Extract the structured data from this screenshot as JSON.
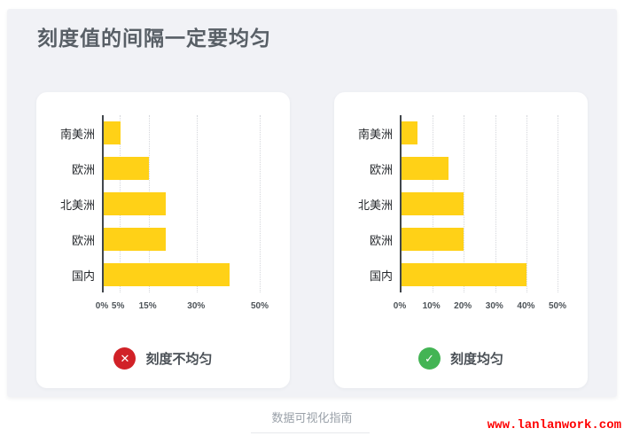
{
  "page": {
    "title": "刻度值的间隔一定要均匀",
    "footer_caption": "数据可视化指南",
    "watermark": "www.lanlanwork.com"
  },
  "colors": {
    "page_background": "#ffffff",
    "panel_background": "#f1f2f6",
    "card_background": "#ffffff",
    "bar_fill": "#ffd117",
    "axis_line": "#41464c",
    "gridline": "#d4d6db",
    "title_text": "#585f66",
    "category_text": "#26292d",
    "tick_text": "#4d5358",
    "badge_error": "#d12127",
    "badge_success": "#43b454",
    "badge_text": "#4a5056",
    "footer_text": "#9aa1a9",
    "watermark_text": "#fe0000"
  },
  "cards": [
    {
      "badge": {
        "type": "error",
        "icon": "x-circle-icon",
        "glyph": "✕",
        "color": "#d12127",
        "label": "刻度不均匀"
      }
    },
    {
      "badge": {
        "type": "success",
        "icon": "check-circle-icon",
        "glyph": "✓",
        "color": "#43b454",
        "label": "刻度均匀"
      }
    }
  ],
  "chart_data": [
    {
      "type": "bar",
      "orientation": "horizontal",
      "title": "刻度不均匀",
      "categories": [
        "南美洲",
        "欧洲",
        "北美洲",
        "欧洲",
        "国内"
      ],
      "values": [
        5,
        15,
        20,
        20,
        40
      ],
      "value_unit": "%",
      "tick_labels": [
        "0%",
        "5%",
        "15%",
        "30%",
        "50%"
      ],
      "tick_positions_pct": [
        0,
        10.2,
        29,
        59.7,
        100
      ],
      "bar_lengths_pct": [
        10.8,
        29,
        39.8,
        39.8,
        80.7
      ],
      "axis_scale": "non-uniform",
      "grid": "dotted-vertical",
      "bar_color": "#ffd117"
    },
    {
      "type": "bar",
      "orientation": "horizontal",
      "title": "刻度均匀",
      "categories": [
        "南美洲",
        "欧洲",
        "北美洲",
        "欧洲",
        "国内"
      ],
      "values": [
        5,
        15,
        20,
        20,
        40
      ],
      "value_unit": "%",
      "tick_labels": [
        "0%",
        "10%",
        "20%",
        "30%",
        "40%",
        "50%"
      ],
      "tick_positions_pct": [
        0,
        20,
        40,
        60,
        80,
        100
      ],
      "bar_lengths_pct": [
        10,
        30,
        40,
        40,
        80
      ],
      "axis_scale": "uniform",
      "xlim": [
        0,
        50
      ],
      "grid": "dotted-vertical",
      "bar_color": "#ffd117"
    }
  ]
}
